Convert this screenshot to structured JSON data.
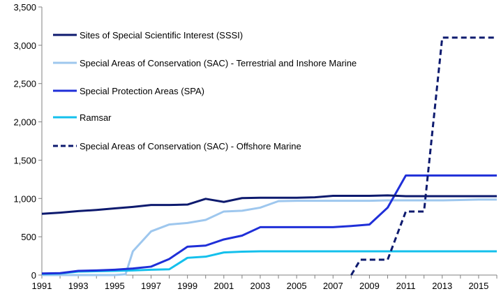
{
  "chart_data": {
    "type": "line",
    "xlim": [
      1991,
      2016
    ],
    "ylim": [
      0,
      3500
    ],
    "x_ticks": [
      "1991",
      "1993",
      "1995",
      "1997",
      "1999",
      "2001",
      "2003",
      "2005",
      "2007",
      "2009",
      "2011",
      "2013",
      "2015"
    ],
    "y_ticks": [
      "0",
      "500",
      "1,000",
      "1,500",
      "2,000",
      "2,500",
      "3,000",
      "3,500"
    ],
    "grid": false,
    "legend_position": "top-left",
    "series": [
      {
        "name": "Sites of Special Scientific Interest (SSSI)",
        "color": "#0D1A6E",
        "dash": "solid",
        "x": [
          1991,
          1992,
          1993,
          1994,
          1995,
          1996,
          1997,
          1998,
          1999,
          2000,
          2001,
          2002,
          2003,
          2004,
          2005,
          2006,
          2007,
          2008,
          2009,
          2010,
          2011,
          2012,
          2013,
          2014,
          2015,
          2016
        ],
        "y": [
          800,
          815,
          835,
          850,
          870,
          890,
          915,
          915,
          920,
          995,
          955,
          1005,
          1010,
          1010,
          1010,
          1015,
          1035,
          1035,
          1035,
          1040,
          1030,
          1030,
          1030,
          1030,
          1030,
          1030
        ]
      },
      {
        "name": "Special Areas of Conservation (SAC) - Terrestrial and Inshore Marine",
        "color": "#9EC7EE",
        "dash": "solid",
        "x": [
          1991,
          1992,
          1993,
          1994,
          1995,
          1995.6,
          1996,
          1997,
          1998,
          1999,
          2000,
          2001,
          2002,
          2003,
          2004,
          2005,
          2006,
          2007,
          2008,
          2009,
          2010,
          2011,
          2012,
          2013,
          2014,
          2015,
          2016
        ],
        "y": [
          0,
          0,
          0,
          0,
          0,
          10,
          310,
          570,
          660,
          680,
          720,
          830,
          840,
          880,
          965,
          970,
          970,
          970,
          970,
          970,
          975,
          975,
          975,
          975,
          980,
          985,
          985
        ]
      },
      {
        "name": "Special Protection Areas (SPA)",
        "color": "#1F2FD8",
        "dash": "solid",
        "x": [
          1991,
          1992,
          1993,
          1994,
          1995,
          1996,
          1997,
          1998,
          1999,
          2000,
          2001,
          2002,
          2003,
          2004,
          2005,
          2006,
          2007,
          2008,
          2009,
          2010,
          2011,
          2012,
          2013,
          2014,
          2015,
          2016
        ],
        "y": [
          20,
          25,
          55,
          60,
          70,
          85,
          110,
          210,
          370,
          385,
          465,
          515,
          625,
          625,
          625,
          625,
          625,
          640,
          660,
          880,
          1300,
          1300,
          1300,
          1300,
          1300,
          1300
        ]
      },
      {
        "name": "Ramsar",
        "color": "#14C0EC",
        "dash": "solid",
        "x": [
          1991,
          1992,
          1993,
          1994,
          1995,
          1996,
          1997,
          1998,
          1999,
          2000,
          2001,
          2002,
          2003,
          2004,
          2005,
          2006,
          2007,
          2008,
          2009,
          2010,
          2011,
          2012,
          2013,
          2014,
          2015,
          2016
        ],
        "y": [
          15,
          20,
          45,
          50,
          55,
          60,
          70,
          75,
          225,
          240,
          295,
          305,
          310,
          310,
          310,
          310,
          310,
          310,
          310,
          310,
          310,
          310,
          310,
          310,
          310,
          310
        ]
      },
      {
        "name": "Special Areas of Conservation (SAC) - Offshore Marine",
        "color": "#0D1A6E",
        "dash": "dashed",
        "x": [
          2008,
          2008.5,
          2009,
          2009.5,
          2010,
          2011,
          2012,
          2013,
          2014,
          2015,
          2016
        ],
        "y": [
          0,
          200,
          200,
          200,
          200,
          830,
          830,
          3100,
          3100,
          3100,
          3100
        ]
      }
    ]
  }
}
